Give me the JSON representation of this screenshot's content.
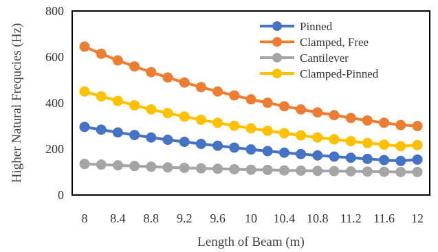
{
  "chart_data": {
    "type": "line",
    "xlabel": "Length of Beam (m)",
    "ylabel": "Higher Natural Frequcies (Hz)",
    "xlim": [
      8,
      12
    ],
    "ylim": [
      0,
      800
    ],
    "x_ticks": [
      "8",
      "8.4",
      "8.8",
      "9.2",
      "9.6",
      "10",
      "10.4",
      "10.8",
      "11.2",
      "11.6",
      "12"
    ],
    "y_ticks": [
      "0",
      "200",
      "400",
      "600",
      "800"
    ],
    "legend_position": "top-right-inside",
    "grid": false,
    "x": [
      8,
      8.2,
      8.4,
      8.6,
      8.8,
      9,
      9.2,
      9.4,
      9.6,
      9.8,
      10,
      10.2,
      10.4,
      10.6,
      10.8,
      11,
      11.2,
      11.4,
      11.6,
      11.8,
      12
    ],
    "series": [
      {
        "name": "Pinned",
        "color": "#4472C4",
        "values": [
          296,
          284,
          272,
          261,
          250,
          240,
          231,
          222,
          214,
          206,
          198,
          191,
          184,
          178,
          172,
          167,
          162,
          157,
          152,
          148,
          154
        ]
      },
      {
        "name": "Clamped, Free",
        "color": "#ED7D31",
        "values": [
          645,
          614,
          585,
          559,
          534,
          511,
          489,
          469,
          450,
          433,
          416,
          401,
          386,
          372,
          359,
          347,
          335,
          324,
          314,
          304,
          300
        ]
      },
      {
        "name": "Cantilever",
        "color": "#A5A5A5",
        "values": [
          135,
          132,
          129,
          126,
          123,
          120,
          118,
          116,
          114,
          112,
          110,
          109,
          107,
          106,
          105,
          104,
          103,
          102,
          101,
          100,
          100
        ]
      },
      {
        "name": "Clamped-Pinned",
        "color": "#FFC000",
        "values": [
          450,
          429,
          409,
          390,
          372,
          356,
          341,
          327,
          314,
          301,
          290,
          279,
          269,
          259,
          250,
          242,
          234,
          226,
          219,
          212,
          217
        ]
      }
    ]
  }
}
